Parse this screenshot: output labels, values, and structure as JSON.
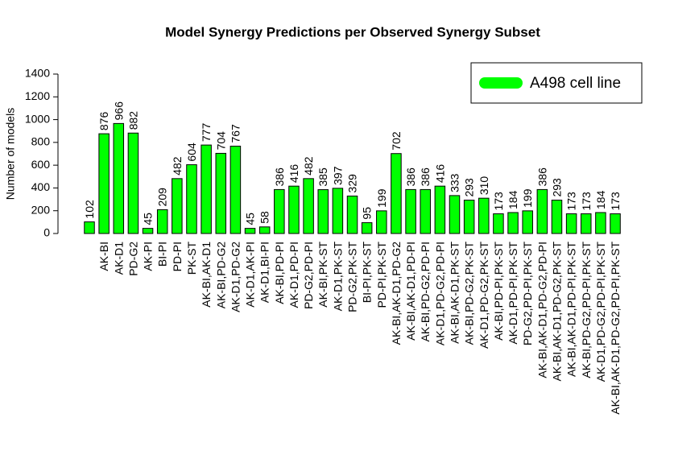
{
  "chart_data": {
    "type": "bar",
    "title": "Model Synergy Predictions per Observed Synergy Subset",
    "y_label": "Number of models",
    "categories": [
      null,
      "AK-BI",
      "AK-D1",
      "PD-G2",
      "AK-PI",
      "BI-PI",
      "PD-PI",
      "PK-ST",
      "AK-BI,AK-D1",
      "AK-BI,PD-G2",
      "AK-D1,PD-G2",
      "AK-D1,AK-PI",
      "AK-D1,BI-PI",
      "AK-BI,PD-PI",
      "AK-D1,PD-PI",
      "PD-G2,PD-PI",
      "AK-BI,PK-ST",
      "AK-D1,PK-ST",
      "PD-G2,PK-ST",
      "BI-PI,PK-ST",
      "PD-PI,PK-ST",
      "AK-BI,AK-D1,PD-G2",
      "AK-BI,AK-D1,PD-PI",
      "AK-BI,PD-G2,PD-PI",
      "AK-D1,PD-G2,PD-PI",
      "AK-BI,AK-D1,PK-ST",
      "AK-BI,PD-G2,PK-ST",
      "AK-D1,PD-G2,PK-ST",
      "AK-BI,PD-PI,PK-ST",
      "AK-D1,PD-PI,PK-ST",
      "PD-G2,PD-PI,PK-ST",
      "AK-BI,AK-D1,PD-G2,PD-PI",
      "AK-BI,AK-D1,PD-G2,PK-ST",
      "AK-BI,AK-D1,PD-PI,PK-ST",
      "AK-BI,PD-G2,PD-PI,PK-ST",
      "AK-D1,PD-G2,PD-PI,PK-ST",
      "AK-BI,AK-D1,PD-G2,PD-PI,PK-ST"
    ],
    "series": [
      {
        "name": "A498 cell line",
        "color": "#00ff00",
        "values": [
          102,
          876,
          966,
          882,
          45,
          209,
          482,
          604,
          777,
          704,
          767,
          45,
          58,
          386,
          416,
          482,
          385,
          397,
          329,
          95,
          199,
          702,
          386,
          386,
          416,
          333,
          293,
          310,
          173,
          184,
          199,
          386,
          293,
          173,
          173,
          184,
          173
        ]
      }
    ],
    "value_label_color": "#ff0000",
    "ylim": [
      0,
      1400
    ],
    "yticks": [
      0,
      200,
      400,
      600,
      800,
      1000,
      1200,
      1400
    ],
    "legend_position": "top-right"
  }
}
